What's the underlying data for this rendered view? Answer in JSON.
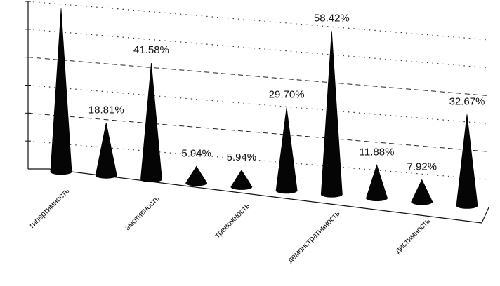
{
  "chart_data": {
    "type": "bar",
    "style": "3d-cone",
    "categories": [
      "гипертимность",
      "",
      "эмотивность",
      "",
      "тревожность",
      "",
      "демонстративность",
      "",
      "дистимность",
      ""
    ],
    "values": [
      58.42,
      18.81,
      41.58,
      5.94,
      5.94,
      29.7,
      58.42,
      11.88,
      7.92,
      32.67
    ],
    "data_labels": [
      "",
      "18.81%",
      "41.58%",
      "5.94%",
      "5.94%",
      "29.70%",
      "58.42%",
      "11.88%",
      "7.92%",
      "32.67%"
    ],
    "ylim": [
      0,
      60
    ],
    "grid": true,
    "colors": {
      "cone": "#050505",
      "grid": "#222222"
    }
  }
}
